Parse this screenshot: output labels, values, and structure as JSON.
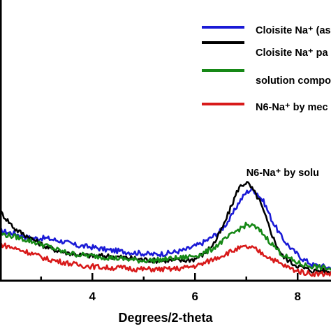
{
  "chart_data": {
    "type": "line",
    "xlabel": "Degrees/2-theta",
    "ylabel": "",
    "xlim": [
      2.2,
      8.65
    ],
    "ylim": [
      0,
      1
    ],
    "x_ticks": [
      "4",
      "6",
      "8"
    ],
    "grid": false,
    "legend_position": "top-right",
    "series": [
      {
        "name": "Cloisite Na⁺ (as",
        "color": "#1a1ad6",
        "x": [
          2.2,
          2.5,
          2.8,
          3.1,
          3.4,
          3.7,
          4.0,
          4.3,
          4.6,
          4.9,
          5.2,
          5.5,
          5.8,
          6.1,
          6.3,
          6.5,
          6.7,
          6.85,
          7.0,
          7.1,
          7.2,
          7.35,
          7.5,
          7.7,
          7.9,
          8.1,
          8.3,
          8.5,
          8.65
        ],
        "y": [
          0.29,
          0.27,
          0.24,
          0.24,
          0.22,
          0.19,
          0.18,
          0.16,
          0.15,
          0.14,
          0.13,
          0.14,
          0.16,
          0.2,
          0.24,
          0.29,
          0.38,
          0.48,
          0.55,
          0.57,
          0.55,
          0.48,
          0.36,
          0.24,
          0.16,
          0.1,
          0.06,
          0.05,
          0.04
        ]
      },
      {
        "name": "Cloisite Na⁺ pa",
        "color": "#000000",
        "x": [
          2.2,
          2.5,
          2.8,
          3.1,
          3.4,
          3.7,
          4.0,
          4.3,
          4.6,
          4.9,
          5.2,
          5.5,
          5.8,
          6.0,
          6.2,
          6.4,
          6.55,
          6.7,
          6.85,
          7.0,
          7.1,
          7.25,
          7.4,
          7.55,
          7.7,
          7.9,
          8.1,
          8.3,
          8.5,
          8.65
        ],
        "y": [
          0.42,
          0.3,
          0.24,
          0.18,
          0.15,
          0.13,
          0.12,
          0.12,
          0.11,
          0.1,
          0.09,
          0.09,
          0.09,
          0.1,
          0.14,
          0.22,
          0.32,
          0.45,
          0.58,
          0.62,
          0.58,
          0.5,
          0.36,
          0.22,
          0.12,
          0.07,
          0.04,
          0.02,
          0.02,
          0.01
        ]
      },
      {
        "name": "solution compo",
        "color": "#168816",
        "x": [
          2.2,
          2.5,
          2.8,
          3.1,
          3.4,
          3.7,
          4.0,
          4.3,
          4.6,
          4.9,
          5.2,
          5.5,
          5.8,
          6.1,
          6.3,
          6.5,
          6.7,
          6.85,
          7.0,
          7.15,
          7.3,
          7.5,
          7.7,
          7.9,
          8.1,
          8.3,
          8.5,
          8.65
        ],
        "y": [
          0.27,
          0.25,
          0.22,
          0.19,
          0.15,
          0.13,
          0.12,
          0.11,
          0.1,
          0.09,
          0.09,
          0.1,
          0.11,
          0.13,
          0.16,
          0.21,
          0.26,
          0.3,
          0.33,
          0.32,
          0.28,
          0.2,
          0.13,
          0.09,
          0.06,
          0.05,
          0.04,
          0.03
        ]
      },
      {
        "name": "N6-Na⁺ by mec",
        "color": "#d81a1a",
        "x": [
          2.2,
          2.5,
          2.8,
          3.1,
          3.4,
          3.7,
          4.0,
          4.3,
          4.6,
          4.9,
          5.2,
          5.5,
          5.8,
          6.1,
          6.3,
          6.5,
          6.7,
          6.85,
          7.0,
          7.15,
          7.3,
          7.5,
          7.7,
          7.9,
          8.1,
          8.3,
          8.5,
          8.65
        ],
        "y": [
          0.2,
          0.17,
          0.14,
          0.1,
          0.08,
          0.06,
          0.05,
          0.04,
          0.04,
          0.03,
          0.03,
          0.03,
          0.04,
          0.06,
          0.09,
          0.12,
          0.15,
          0.17,
          0.18,
          0.17,
          0.14,
          0.1,
          0.06,
          0.03,
          0.01,
          0.0,
          0.0,
          0.0
        ]
      }
    ],
    "annotations": [
      {
        "text": "N6-Na⁺ by solu",
        "x": 7.0,
        "y": 0.66
      }
    ]
  }
}
